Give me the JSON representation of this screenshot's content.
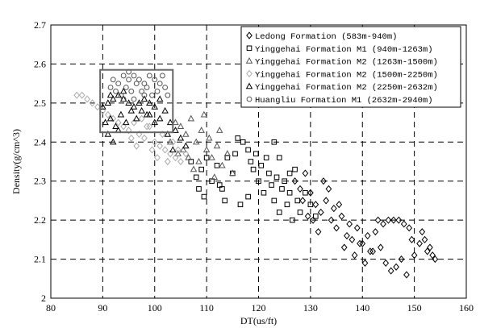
{
  "chart_data": {
    "type": "scatter",
    "xlabel": "DT(us/ft)",
    "ylabel": "Density(g/cm^3)",
    "xlim": [
      80,
      160
    ],
    "ylim": [
      2,
      2.7
    ],
    "xticks": [
      "80",
      "90",
      "100",
      "110",
      "120",
      "130",
      "140",
      "150",
      "160"
    ],
    "yticks": [
      "2",
      "2.1",
      "2.2",
      "2.3",
      "2.4",
      "2.5",
      "2.6",
      "2.7"
    ],
    "grid": true,
    "grid_style": "dashed",
    "legend_position": "top-right",
    "highlight_box": {
      "x": [
        89.5,
        103.5
      ],
      "y": [
        2.425,
        2.585
      ],
      "color": "#666666"
    },
    "series": [
      {
        "name": "Ledong Formation (583m-940m)",
        "marker": "diamond",
        "color": "#000000",
        "filled": false,
        "points": [
          [
            127,
            2.3
          ],
          [
            128,
            2.28
          ],
          [
            129,
            2.32
          ],
          [
            128.5,
            2.25
          ],
          [
            130,
            2.27
          ],
          [
            131,
            2.24
          ],
          [
            130.5,
            2.2
          ],
          [
            132,
            2.22
          ],
          [
            133,
            2.25
          ],
          [
            131.5,
            2.17
          ],
          [
            134,
            2.2
          ],
          [
            135,
            2.18
          ],
          [
            134.5,
            2.23
          ],
          [
            136,
            2.21
          ],
          [
            137,
            2.16
          ],
          [
            136.5,
            2.13
          ],
          [
            138,
            2.15
          ],
          [
            139,
            2.18
          ],
          [
            138.5,
            2.11
          ],
          [
            140,
            2.14
          ],
          [
            141,
            2.16
          ],
          [
            140.5,
            2.09
          ],
          [
            142,
            2.12
          ],
          [
            143,
            2.2
          ],
          [
            144,
            2.19
          ],
          [
            145,
            2.2
          ],
          [
            146,
            2.2
          ],
          [
            147,
            2.2
          ],
          [
            148,
            2.19
          ],
          [
            149,
            2.18
          ],
          [
            149.5,
            2.15
          ],
          [
            143.5,
            2.13
          ],
          [
            144.5,
            2.09
          ],
          [
            145.5,
            2.07
          ],
          [
            146.5,
            2.08
          ],
          [
            147.5,
            2.1
          ],
          [
            148.5,
            2.06
          ],
          [
            150,
            2.11
          ],
          [
            151,
            2.14
          ],
          [
            151.5,
            2.17
          ],
          [
            152,
            2.15
          ],
          [
            152.5,
            2.12
          ],
          [
            153,
            2.13
          ],
          [
            153.5,
            2.11
          ],
          [
            154,
            2.1
          ],
          [
            133.5,
            2.28
          ],
          [
            132.5,
            2.3
          ],
          [
            135.5,
            2.24
          ],
          [
            129.5,
            2.21
          ],
          [
            137.5,
            2.19
          ],
          [
            142.5,
            2.17
          ],
          [
            141.5,
            2.12
          ],
          [
            139.5,
            2.14
          ]
        ]
      },
      {
        "name": "Yinggehai Formation M1 (940m-1263m)",
        "marker": "square",
        "color": "#000000",
        "filled": false,
        "points": [
          [
            107,
            2.35
          ],
          [
            108,
            2.31
          ],
          [
            109,
            2.33
          ],
          [
            110,
            2.36
          ],
          [
            111,
            2.3
          ],
          [
            112,
            2.34
          ],
          [
            113,
            2.28
          ],
          [
            114,
            2.36
          ],
          [
            115,
            2.32
          ],
          [
            116,
            2.41
          ],
          [
            117,
            2.4
          ],
          [
            118,
            2.38
          ],
          [
            118.5,
            2.35
          ],
          [
            119,
            2.33
          ],
          [
            119.5,
            2.37
          ],
          [
            120,
            2.3
          ],
          [
            120.5,
            2.34
          ],
          [
            121,
            2.27
          ],
          [
            122,
            2.32
          ],
          [
            122.5,
            2.29
          ],
          [
            123,
            2.25
          ],
          [
            123.5,
            2.31
          ],
          [
            124,
            2.22
          ],
          [
            124.5,
            2.28
          ],
          [
            125,
            2.3
          ],
          [
            125.5,
            2.24
          ],
          [
            126,
            2.27
          ],
          [
            126.5,
            2.2
          ],
          [
            127,
            2.33
          ],
          [
            127.5,
            2.25
          ],
          [
            128,
            2.22
          ],
          [
            129,
            2.27
          ],
          [
            130,
            2.24
          ],
          [
            131,
            2.21
          ],
          [
            108.5,
            2.28
          ],
          [
            109.5,
            2.26
          ],
          [
            113.5,
            2.25
          ],
          [
            116.5,
            2.24
          ],
          [
            118,
            2.26
          ],
          [
            121.5,
            2.36
          ],
          [
            123,
            2.4
          ],
          [
            124,
            2.36
          ],
          [
            126,
            2.32
          ],
          [
            115.5,
            2.37
          ],
          [
            112.5,
            2.29
          ]
        ]
      },
      {
        "name": "Yinggehai Formation M2 (1263m-1500m)",
        "marker": "triangle",
        "color": "#555555",
        "filled": false,
        "points": [
          [
            104,
            2.45
          ],
          [
            105,
            2.44
          ],
          [
            106,
            2.42
          ],
          [
            107,
            2.46
          ],
          [
            108,
            2.4
          ],
          [
            109,
            2.43
          ],
          [
            110,
            2.38
          ],
          [
            110.5,
            2.41
          ],
          [
            111,
            2.36
          ],
          [
            112,
            2.39
          ],
          [
            113,
            2.34
          ],
          [
            114,
            2.37
          ],
          [
            115,
            2.32
          ],
          [
            105.5,
            2.38
          ],
          [
            106.5,
            2.36
          ],
          [
            108.5,
            2.35
          ],
          [
            103,
            2.4
          ],
          [
            104.5,
            2.37
          ],
          [
            107.5,
            2.33
          ],
          [
            111.5,
            2.31
          ],
          [
            112.5,
            2.43
          ],
          [
            109.5,
            2.47
          ]
        ]
      },
      {
        "name": "Yinggehai Formation M2 (1500m-2250m)",
        "marker": "diamond",
        "color": "#aaaaaa",
        "filled": false,
        "points": [
          [
            85,
            2.52
          ],
          [
            86,
            2.52
          ],
          [
            87,
            2.51
          ],
          [
            88,
            2.5
          ],
          [
            89,
            2.49
          ],
          [
            90,
            2.48
          ],
          [
            91,
            2.47
          ],
          [
            92,
            2.46
          ],
          [
            93,
            2.45
          ],
          [
            94,
            2.44
          ],
          [
            95,
            2.43
          ],
          [
            96,
            2.45
          ],
          [
            97,
            2.42
          ],
          [
            98,
            2.41
          ],
          [
            99,
            2.44
          ],
          [
            100,
            2.4
          ],
          [
            101,
            2.39
          ],
          [
            102,
            2.38
          ],
          [
            103,
            2.37
          ],
          [
            104,
            2.36
          ],
          [
            105,
            2.35
          ],
          [
            106,
            2.37
          ],
          [
            95.5,
            2.41
          ],
          [
            97.5,
            2.46
          ],
          [
            99.5,
            2.38
          ],
          [
            101.5,
            2.42
          ],
          [
            103.5,
            2.4
          ],
          [
            100.5,
            2.36
          ],
          [
            98.5,
            2.44
          ],
          [
            96.5,
            2.39
          ],
          [
            104.5,
            2.38
          ],
          [
            102.5,
            2.35
          ]
        ]
      },
      {
        "name": "Yinggehai Formation M2 (2250m-2632m)",
        "marker": "triangle",
        "color": "#000000",
        "filled": false,
        "points": [
          [
            90,
            2.49
          ],
          [
            91,
            2.5
          ],
          [
            92,
            2.51
          ],
          [
            93,
            2.52
          ],
          [
            94,
            2.51
          ],
          [
            95,
            2.5
          ],
          [
            96,
            2.49
          ],
          [
            97,
            2.5
          ],
          [
            98,
            2.51
          ],
          [
            99,
            2.5
          ],
          [
            100,
            2.49
          ],
          [
            101,
            2.51
          ],
          [
            90.5,
            2.45
          ],
          [
            91.5,
            2.46
          ],
          [
            92.5,
            2.44
          ],
          [
            93.5,
            2.47
          ],
          [
            94.5,
            2.45
          ],
          [
            95.5,
            2.48
          ],
          [
            96.5,
            2.46
          ],
          [
            97.5,
            2.48
          ],
          [
            98.5,
            2.47
          ],
          [
            91,
            2.42
          ],
          [
            92,
            2.4
          ],
          [
            93,
            2.43
          ],
          [
            100,
            2.45
          ],
          [
            99,
            2.47
          ],
          [
            102,
            2.48
          ],
          [
            101,
            2.46
          ],
          [
            103,
            2.45
          ],
          [
            104,
            2.43
          ],
          [
            105,
            2.41
          ],
          [
            106,
            2.39
          ],
          [
            103.5,
            2.38
          ],
          [
            102.5,
            2.42
          ],
          [
            91.5,
            2.52
          ],
          [
            94,
            2.53
          ]
        ]
      },
      {
        "name": "Huangliu Formation M1 (2632m-2940m)",
        "marker": "circle",
        "color": "#555555",
        "filled": false,
        "points": [
          [
            92,
            2.56
          ],
          [
            93,
            2.55
          ],
          [
            94,
            2.57
          ],
          [
            95,
            2.56
          ],
          [
            96,
            2.57
          ],
          [
            97,
            2.56
          ],
          [
            98,
            2.55
          ],
          [
            99,
            2.57
          ],
          [
            100,
            2.56
          ],
          [
            101,
            2.55
          ],
          [
            92.5,
            2.53
          ],
          [
            93.5,
            2.52
          ],
          [
            94.5,
            2.54
          ],
          [
            95.5,
            2.53
          ],
          [
            96.5,
            2.55
          ],
          [
            97.5,
            2.53
          ],
          [
            98.5,
            2.54
          ],
          [
            99.5,
            2.52
          ],
          [
            100.5,
            2.53
          ],
          [
            102,
            2.54
          ],
          [
            102.5,
            2.52
          ],
          [
            91.5,
            2.54
          ],
          [
            94,
            2.51
          ],
          [
            96,
            2.51
          ],
          [
            98,
            2.52
          ],
          [
            101.5,
            2.57
          ],
          [
            95,
            2.58
          ]
        ]
      }
    ]
  }
}
